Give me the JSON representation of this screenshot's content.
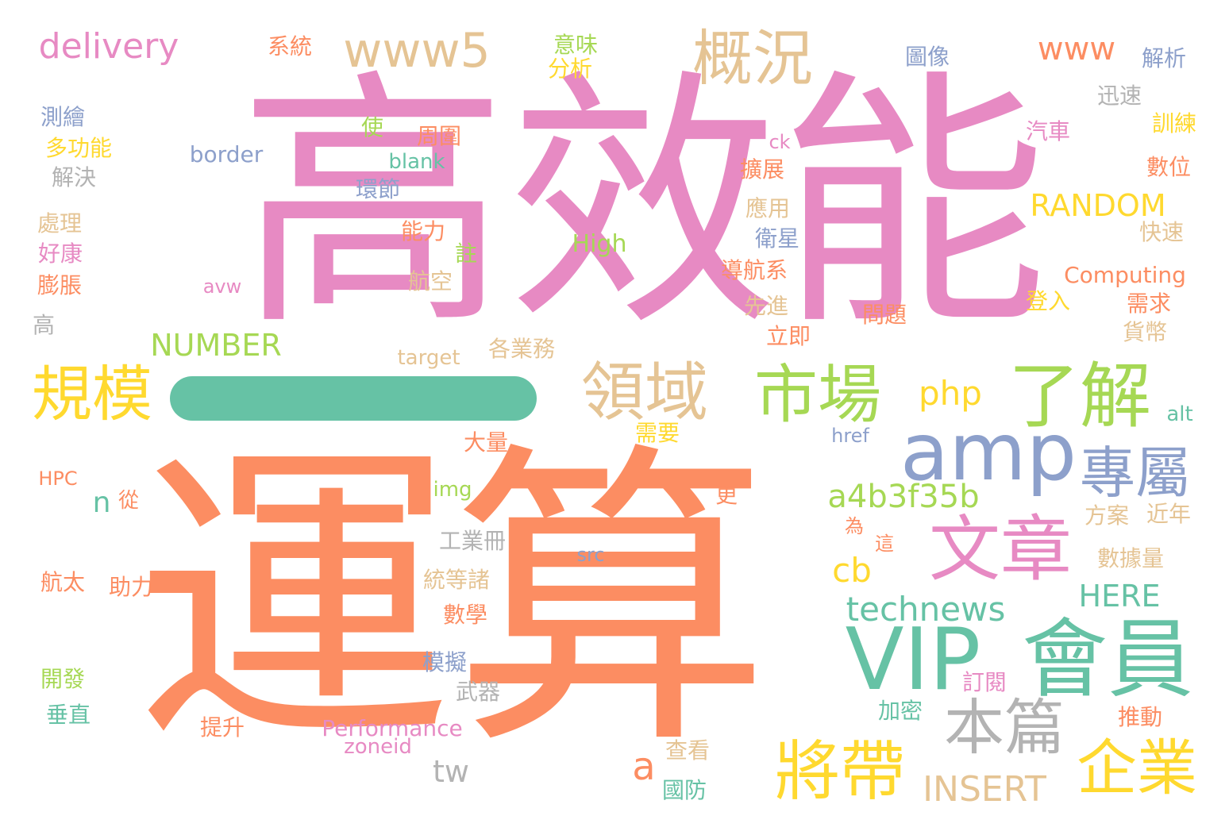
{
  "colors": {
    "pink": "#e78ac3",
    "orange": "#fc8d62",
    "teal": "#66c2a5",
    "blue": "#8da0cb",
    "green": "#a6d854",
    "yellow": "#ffd92f",
    "tan": "#e5c494",
    "gray": "#b3b3b3"
  },
  "bar": {
    "color": "#66c2a5"
  },
  "words": [
    {
      "text": "高效能",
      "color": "#e78ac3"
    },
    {
      "text": "運算",
      "color": "#fc8d62"
    },
    {
      "text": "VIP",
      "color": "#66c2a5"
    },
    {
      "text": "會員",
      "color": "#66c2a5"
    },
    {
      "text": "amp",
      "color": "#8da0cb"
    },
    {
      "text": "了解",
      "color": "#a6d854"
    },
    {
      "text": "市場",
      "color": "#a6d854"
    },
    {
      "text": "文章",
      "color": "#e78ac3"
    },
    {
      "text": "專屬",
      "color": "#8da0cb"
    },
    {
      "text": "本篇",
      "color": "#b3b3b3"
    },
    {
      "text": "將帶",
      "color": "#ffd92f"
    },
    {
      "text": "企業",
      "color": "#ffd92f"
    },
    {
      "text": "領域",
      "color": "#e5c494"
    },
    {
      "text": "規模",
      "color": "#ffd92f"
    },
    {
      "text": "概況",
      "color": "#e5c494"
    },
    {
      "text": "www5",
      "color": "#e5c494"
    },
    {
      "text": "delivery",
      "color": "#e78ac3"
    },
    {
      "text": "www",
      "color": "#fc8d62"
    },
    {
      "text": "RANDOM",
      "color": "#ffd92f"
    },
    {
      "text": "NUMBER",
      "color": "#a6d854"
    },
    {
      "text": "a4b3f35b",
      "color": "#a6d854"
    },
    {
      "text": "technews",
      "color": "#66c2a5"
    },
    {
      "text": "HERE",
      "color": "#66c2a5"
    },
    {
      "text": "INSERT",
      "color": "#e5c494"
    },
    {
      "text": "php",
      "color": "#ffd92f"
    },
    {
      "text": "cb",
      "color": "#ffd92f"
    },
    {
      "text": "a",
      "color": "#fc8d62"
    },
    {
      "text": "tw",
      "color": "#b3b3b3"
    },
    {
      "text": "n",
      "color": "#66c2a5"
    },
    {
      "text": "從",
      "color": "#fc8d62"
    },
    {
      "text": "Computing",
      "color": "#fc8d62"
    },
    {
      "text": "Performance",
      "color": "#e78ac3"
    },
    {
      "text": "zoneid",
      "color": "#e78ac3"
    },
    {
      "text": "High",
      "color": "#a6d854"
    },
    {
      "text": "border",
      "color": "#8da0cb"
    },
    {
      "text": "blank",
      "color": "#66c2a5"
    },
    {
      "text": "avw",
      "color": "#e78ac3"
    },
    {
      "text": "target",
      "color": "#e5c494"
    },
    {
      "text": "href",
      "color": "#8da0cb"
    },
    {
      "text": "src",
      "color": "#8da0cb"
    },
    {
      "text": "img",
      "color": "#a6d854"
    },
    {
      "text": "ck",
      "color": "#e78ac3"
    },
    {
      "text": "alt",
      "color": "#66c2a5"
    },
    {
      "text": "HPC",
      "color": "#fc8d62"
    },
    {
      "text": "系統",
      "color": "#fc8d62"
    },
    {
      "text": "意味",
      "color": "#a6d854"
    },
    {
      "text": "分析",
      "color": "#ffd92f"
    },
    {
      "text": "圖像",
      "color": "#8da0cb"
    },
    {
      "text": "解析",
      "color": "#8da0cb"
    },
    {
      "text": "迅速",
      "color": "#b3b3b3"
    },
    {
      "text": "訓練",
      "color": "#ffd92f"
    },
    {
      "text": "測繪",
      "color": "#8da0cb"
    },
    {
      "text": "多功能",
      "color": "#ffd92f"
    },
    {
      "text": "解決",
      "color": "#b3b3b3"
    },
    {
      "text": "使",
      "color": "#a6d854"
    },
    {
      "text": "周圍",
      "color": "#fc8d62"
    },
    {
      "text": "環節",
      "color": "#8da0cb"
    },
    {
      "text": "汽車",
      "color": "#e78ac3"
    },
    {
      "text": "數位",
      "color": "#fc8d62"
    },
    {
      "text": "擴展",
      "color": "#fc8d62"
    },
    {
      "text": "應用",
      "color": "#e5c494"
    },
    {
      "text": "快速",
      "color": "#e5c494"
    },
    {
      "text": "處理",
      "color": "#e5c494"
    },
    {
      "text": "好康",
      "color": "#e78ac3"
    },
    {
      "text": "膨脹",
      "color": "#fc8d62"
    },
    {
      "text": "能力",
      "color": "#fc8d62"
    },
    {
      "text": "註",
      "color": "#a6d854"
    },
    {
      "text": "衛星",
      "color": "#8da0cb"
    },
    {
      "text": "導航系",
      "color": "#fc8d62"
    },
    {
      "text": "航空",
      "color": "#e5c494"
    },
    {
      "text": "先進",
      "color": "#e5c494"
    },
    {
      "text": "登入",
      "color": "#ffd92f"
    },
    {
      "text": "需求",
      "color": "#fc8d62"
    },
    {
      "text": "問題",
      "color": "#fc8d62"
    },
    {
      "text": "貨幣",
      "color": "#e5c494"
    },
    {
      "text": "立即",
      "color": "#fc8d62"
    },
    {
      "text": "高",
      "color": "#b3b3b3"
    },
    {
      "text": "各業務",
      "color": "#e5c494"
    },
    {
      "text": "需要",
      "color": "#ffd92f"
    },
    {
      "text": "大量",
      "color": "#fc8d62"
    },
    {
      "text": "更",
      "color": "#fc8d62"
    },
    {
      "text": "為",
      "color": "#fc8d62"
    },
    {
      "text": "這",
      "color": "#fc8d62"
    },
    {
      "text": "方案",
      "color": "#e5c494"
    },
    {
      "text": "近年",
      "color": "#e5c494"
    },
    {
      "text": "工業冊",
      "color": "#b3b3b3"
    },
    {
      "text": "數據量",
      "color": "#e5c494"
    },
    {
      "text": "航太",
      "color": "#fc8d62"
    },
    {
      "text": "助力",
      "color": "#fc8d62"
    },
    {
      "text": "統等諸",
      "color": "#e5c494"
    },
    {
      "text": "數學",
      "color": "#fc8d62"
    },
    {
      "text": "模擬",
      "color": "#8da0cb"
    },
    {
      "text": "開發",
      "color": "#a6d854"
    },
    {
      "text": "武器",
      "color": "#b3b3b3"
    },
    {
      "text": "訂閱",
      "color": "#e78ac3"
    },
    {
      "text": "垂直",
      "color": "#66c2a5"
    },
    {
      "text": "提升",
      "color": "#fc8d62"
    },
    {
      "text": "加密",
      "color": "#66c2a5"
    },
    {
      "text": "推動",
      "color": "#fc8d62"
    },
    {
      "text": "查看",
      "color": "#e5c494"
    },
    {
      "text": "國防",
      "color": "#66c2a5"
    }
  ]
}
